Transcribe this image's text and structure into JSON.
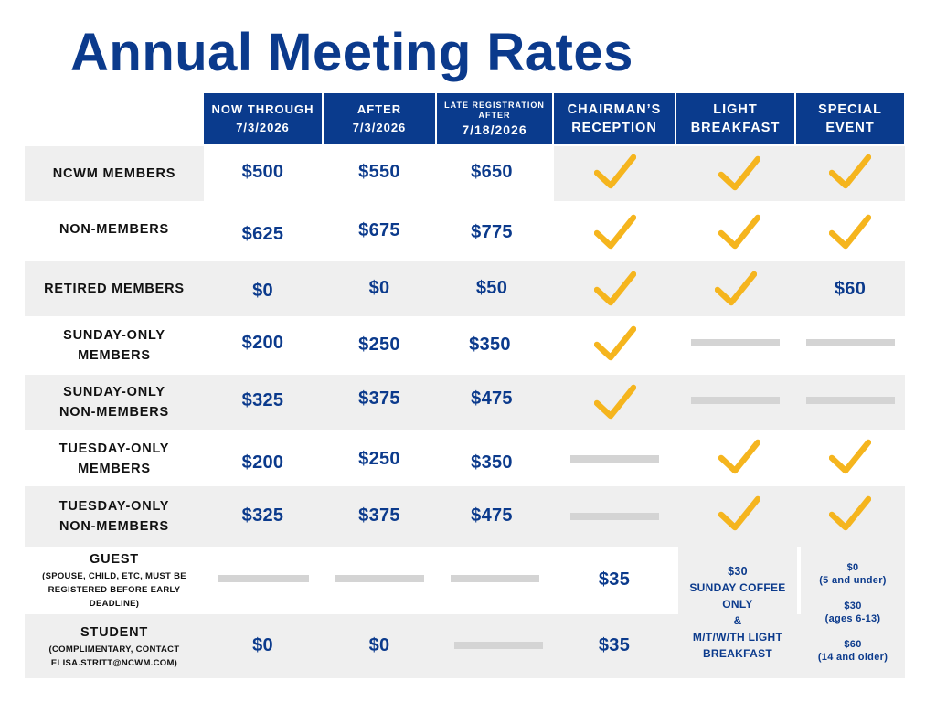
{
  "title": "Annual Meeting Rates",
  "columns": {
    "now": [
      "NOW THROUGH",
      "7/3/2026"
    ],
    "after": [
      "AFTER",
      "7/3/2026"
    ],
    "late": [
      "LATE REGISTRATION",
      "AFTER",
      "7/18/2026"
    ],
    "reception": [
      "CHAIRMAN’S",
      "RECEPTION"
    ],
    "breakfast": [
      "LIGHT",
      "BREAKFAST"
    ],
    "special": [
      "SPECIAL",
      "EVENT"
    ]
  },
  "rows": [
    {
      "label": [
        "NCWM MEMBERS"
      ],
      "now": "$500",
      "after": "$550",
      "late": "$650"
    },
    {
      "label": [
        "NON-MEMBERS"
      ],
      "now": "$625",
      "after": "$675",
      "late": "$775"
    },
    {
      "label": [
        "RETIRED MEMBERS"
      ],
      "now": "$0",
      "after": "$0",
      "late": "$50",
      "special": "$60"
    },
    {
      "label": [
        "SUNDAY-ONLY",
        "MEMBERS"
      ],
      "now": "$200",
      "after": "$250",
      "late": "$350"
    },
    {
      "label": [
        "SUNDAY-ONLY",
        "NON-MEMBERS"
      ],
      "now": "$325",
      "after": "$375",
      "late": "$475"
    },
    {
      "label": [
        "TUESDAY-ONLY",
        "MEMBERS"
      ],
      "now": "$200",
      "after": "$250",
      "late": "$350"
    },
    {
      "label": [
        "TUESDAY-ONLY",
        "NON-MEMBERS"
      ],
      "now": "$325",
      "after": "$375",
      "late": "$475"
    },
    {
      "label": [
        "GUEST"
      ],
      "note": [
        "(SPOUSE, CHILD, ETC, MUST BE",
        "REGISTERED BEFORE EARLY",
        "DEADLINE)"
      ],
      "reception": "$35"
    },
    {
      "label": [
        "STUDENT"
      ],
      "note": [
        "(COMPLIMENTARY, CONTACT",
        "ELISA.STRITT@NCWM.COM)"
      ],
      "now": "$0",
      "after": "$0",
      "reception": "$35"
    }
  ],
  "guest_breakfast": [
    "$30",
    "SUNDAY COFFEE",
    "ONLY",
    "&",
    "M/T/W/TH LIGHT",
    "BREAKFAST"
  ],
  "guest_special": [
    {
      "price": "$0",
      "note": "(5 and under)"
    },
    {
      "price": "$30",
      "note": "(ages 6-13)"
    },
    {
      "price": "$60",
      "note": "(14 and older)"
    }
  ],
  "colors": {
    "navy": "#0a3b8d",
    "check": "#f5b51e",
    "band": "#efefef",
    "dash": "#d4d4d4"
  },
  "icons": {
    "included": "checkmark-icon",
    "not_available": "dash-bar"
  }
}
